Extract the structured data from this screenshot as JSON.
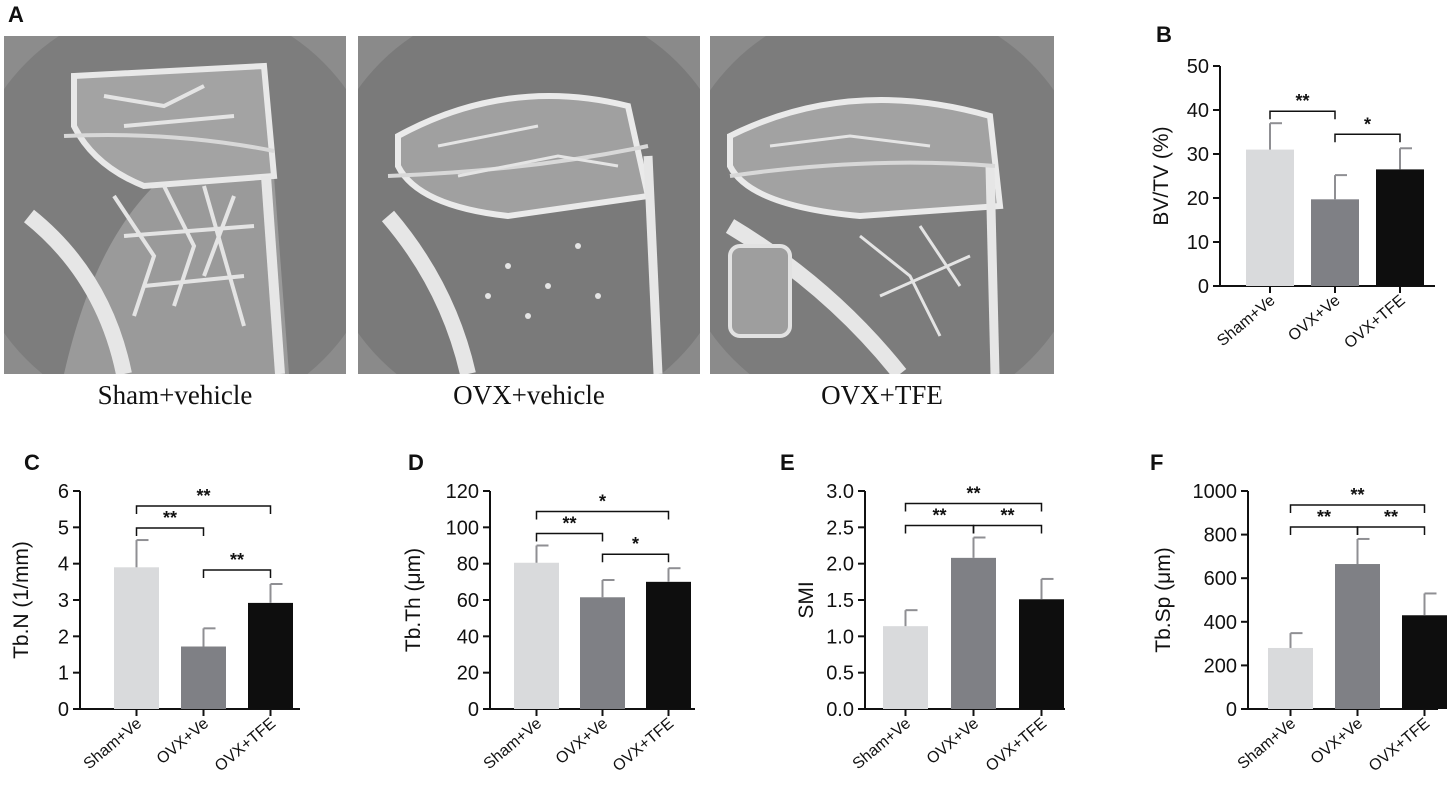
{
  "panels": {
    "A": "A",
    "B": "B",
    "C": "C",
    "D": "D",
    "E": "E",
    "F": "F"
  },
  "ct_images": [
    {
      "caption": "Sham+vehicle"
    },
    {
      "caption": "OVX+vehicle"
    },
    {
      "caption": "OVX+TFE"
    }
  ],
  "colors": {
    "sham": "#d9dadc",
    "ovx_ve": "#7f8085",
    "ovx_tfe": "#0e0e0e",
    "axis": "#111111"
  },
  "chart_data": [
    {
      "type": "bar",
      "panel": "B",
      "categories": [
        "Sham+Ve",
        "OVX+Ve",
        "OVX+TFE"
      ],
      "values": [
        31,
        19.7,
        26.5
      ],
      "errors": [
        6,
        5.5,
        4.8
      ],
      "ylabel": "BV/TV (%)",
      "ylim": [
        0,
        50
      ],
      "yticks": [
        "0",
        "10",
        "20",
        "30",
        "40",
        "50"
      ],
      "sig": [
        {
          "from": 0,
          "to": 1,
          "label": "**"
        },
        {
          "from": 1,
          "to": 2,
          "label": "*"
        }
      ]
    },
    {
      "type": "bar",
      "panel": "C",
      "categories": [
        "Sham+Ve",
        "OVX+Ve",
        "OVX+TFE"
      ],
      "values": [
        3.9,
        1.72,
        2.92
      ],
      "errors": [
        0.75,
        0.5,
        0.52
      ],
      "ylabel": "Tb.N (1/mm)",
      "ylim": [
        0,
        6
      ],
      "yticks": [
        "0",
        "1",
        "2",
        "3",
        "4",
        "5",
        "6"
      ],
      "sig": [
        {
          "from": 0,
          "to": 1,
          "label": "**"
        },
        {
          "from": 0,
          "to": 2,
          "label": "**"
        },
        {
          "from": 1,
          "to": 2,
          "label": "**"
        }
      ]
    },
    {
      "type": "bar",
      "panel": "D",
      "categories": [
        "Sham+Ve",
        "OVX+Ve",
        "OVX+TFE"
      ],
      "values": [
        80.5,
        61.5,
        70
      ],
      "errors": [
        9.5,
        9.5,
        7.5
      ],
      "ylabel": "Tb.Th (μm)",
      "ylim": [
        0,
        120
      ],
      "yticks": [
        "0",
        "20",
        "40",
        "60",
        "80",
        "100",
        "120"
      ],
      "sig": [
        {
          "from": 0,
          "to": 1,
          "label": "**"
        },
        {
          "from": 0,
          "to": 2,
          "label": "*"
        },
        {
          "from": 1,
          "to": 2,
          "label": "*"
        }
      ]
    },
    {
      "type": "bar",
      "panel": "E",
      "categories": [
        "Sham+Ve",
        "OVX+Ve",
        "OVX+TFE"
      ],
      "values": [
        1.14,
        2.08,
        1.51
      ],
      "errors": [
        0.22,
        0.28,
        0.28
      ],
      "ylabel": "SMI",
      "ylim": [
        0,
        3
      ],
      "yticks": [
        "0.0",
        "0.5",
        "1.0",
        "1.5",
        "2.0",
        "2.5",
        "3.0"
      ],
      "sig": [
        {
          "from": 0,
          "to": 1,
          "label": "**"
        },
        {
          "from": 0,
          "to": 2,
          "label": "**"
        },
        {
          "from": 1,
          "to": 2,
          "label": "**"
        }
      ]
    },
    {
      "type": "bar",
      "panel": "F",
      "categories": [
        "Sham+Ve",
        "OVX+Ve",
        "OVX+TFE"
      ],
      "values": [
        280,
        665,
        430
      ],
      "errors": [
        68,
        115,
        100
      ],
      "ylabel": "Tb.Sp (μm)",
      "ylim": [
        0,
        1000
      ],
      "yticks": [
        "0",
        "200",
        "400",
        "600",
        "800",
        "1000"
      ],
      "sig": [
        {
          "from": 0,
          "to": 1,
          "label": "**"
        },
        {
          "from": 0,
          "to": 2,
          "label": "**"
        },
        {
          "from": 1,
          "to": 2,
          "label": "**"
        }
      ]
    }
  ]
}
